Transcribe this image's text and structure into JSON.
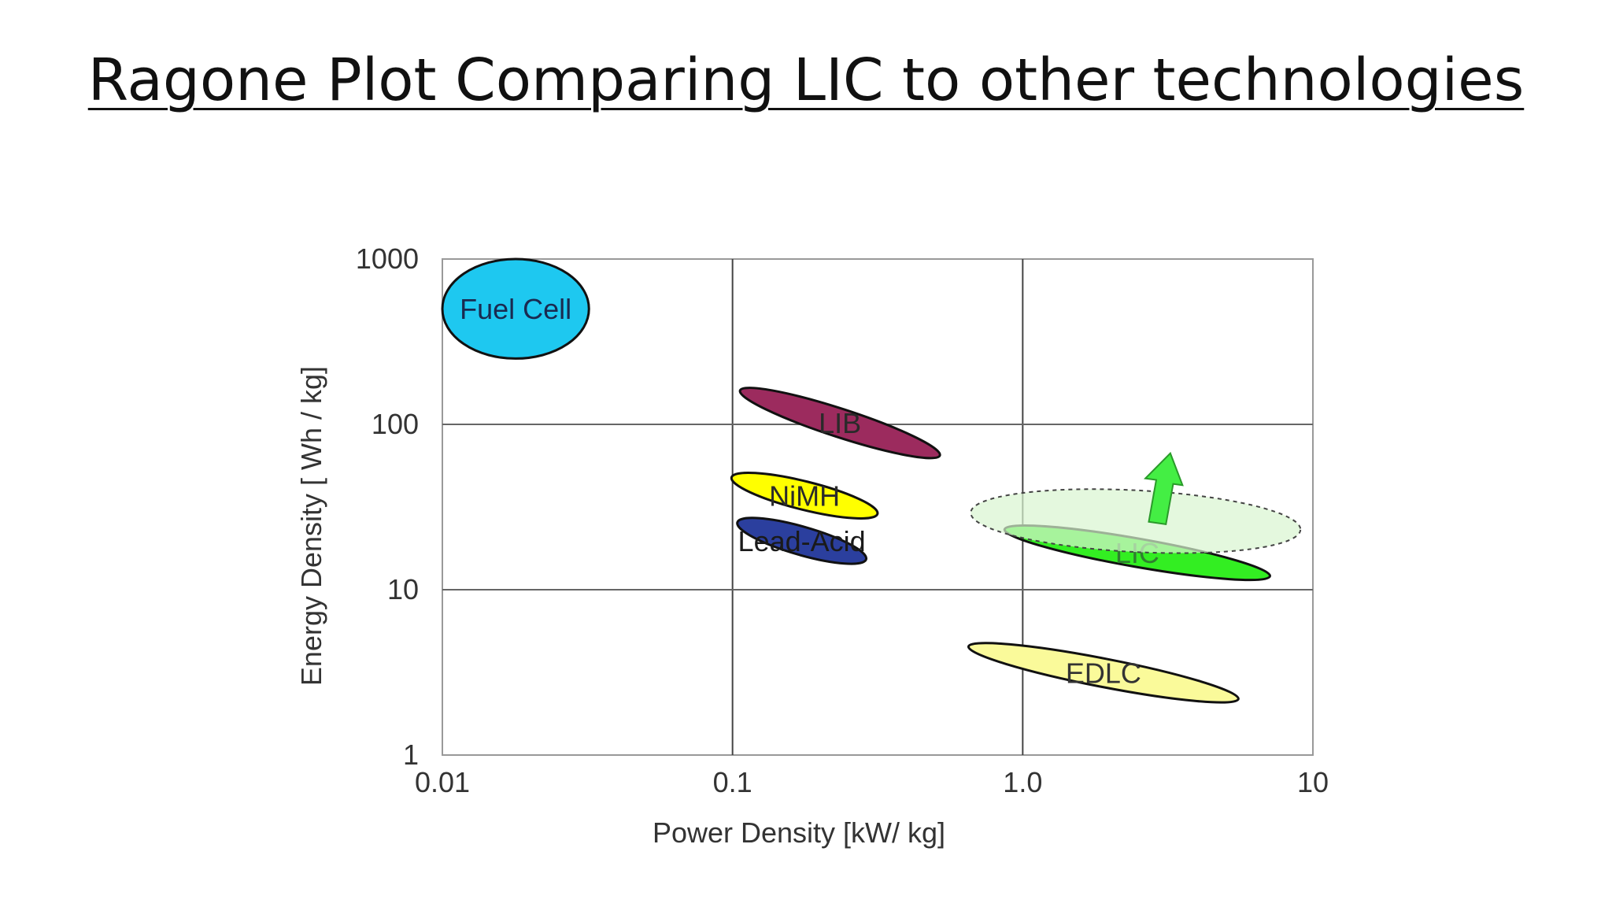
{
  "slide": {
    "title": "Ragone Plot Comparing LIC to other technologies"
  },
  "chart_data": {
    "type": "scatter",
    "title": "",
    "xlabel": "Power Density [kW/ kg]",
    "ylabel": "Energy Density [ Wh / kg]",
    "x_scale": "log",
    "y_scale": "log",
    "xlim": [
      0.01,
      10
    ],
    "ylim": [
      1,
      1000
    ],
    "x_ticks": [
      {
        "value": 0.01,
        "label": "0.01"
      },
      {
        "value": 0.1,
        "label": "0.1"
      },
      {
        "value": 1.0,
        "label": "1.0"
      },
      {
        "value": 10,
        "label": "10"
      }
    ],
    "y_ticks": [
      {
        "value": 1,
        "label": "1"
      },
      {
        "value": 10,
        "label": "10"
      },
      {
        "value": 100,
        "label": "100"
      },
      {
        "value": 1000,
        "label": "1000"
      }
    ],
    "grid": true,
    "regions": [
      {
        "name": "Fuel Cell",
        "x_range": [
          0.01,
          0.032
        ],
        "y_range": [
          250,
          1000
        ],
        "color": "#1ec8f0"
      },
      {
        "name": "LIB",
        "x_range": [
          0.1,
          0.55
        ],
        "y_range": [
          65,
          160
        ],
        "color": "#9c2b5e"
      },
      {
        "name": "NiMH",
        "x_range": [
          0.095,
          0.33
        ],
        "y_range": [
          25,
          55
        ],
        "color": "#ffff00"
      },
      {
        "name": "Lead-Acid",
        "x_range": [
          0.1,
          0.3
        ],
        "y_range": [
          13,
          30
        ],
        "color": "#2b3f9e"
      },
      {
        "name": "LIC",
        "x_range": [
          0.8,
          7.7
        ],
        "y_range": [
          10,
          28
        ],
        "color": "#33ee22"
      },
      {
        "name": "",
        "x_range": [
          0.6,
          10
        ],
        "y_range": [
          15,
          45
        ],
        "color": "#d8f5d0",
        "style": "dashed",
        "note_id": "projected"
      },
      {
        "name": "EDLC",
        "x_range": [
          0.6,
          6
        ],
        "y_range": [
          1.8,
          5.5
        ],
        "color": "#fafa9a"
      }
    ],
    "annotations": [
      {
        "type": "arrow",
        "direction": "up",
        "color": "#44ee44",
        "at": [
          3.0,
          40
        ]
      }
    ]
  }
}
